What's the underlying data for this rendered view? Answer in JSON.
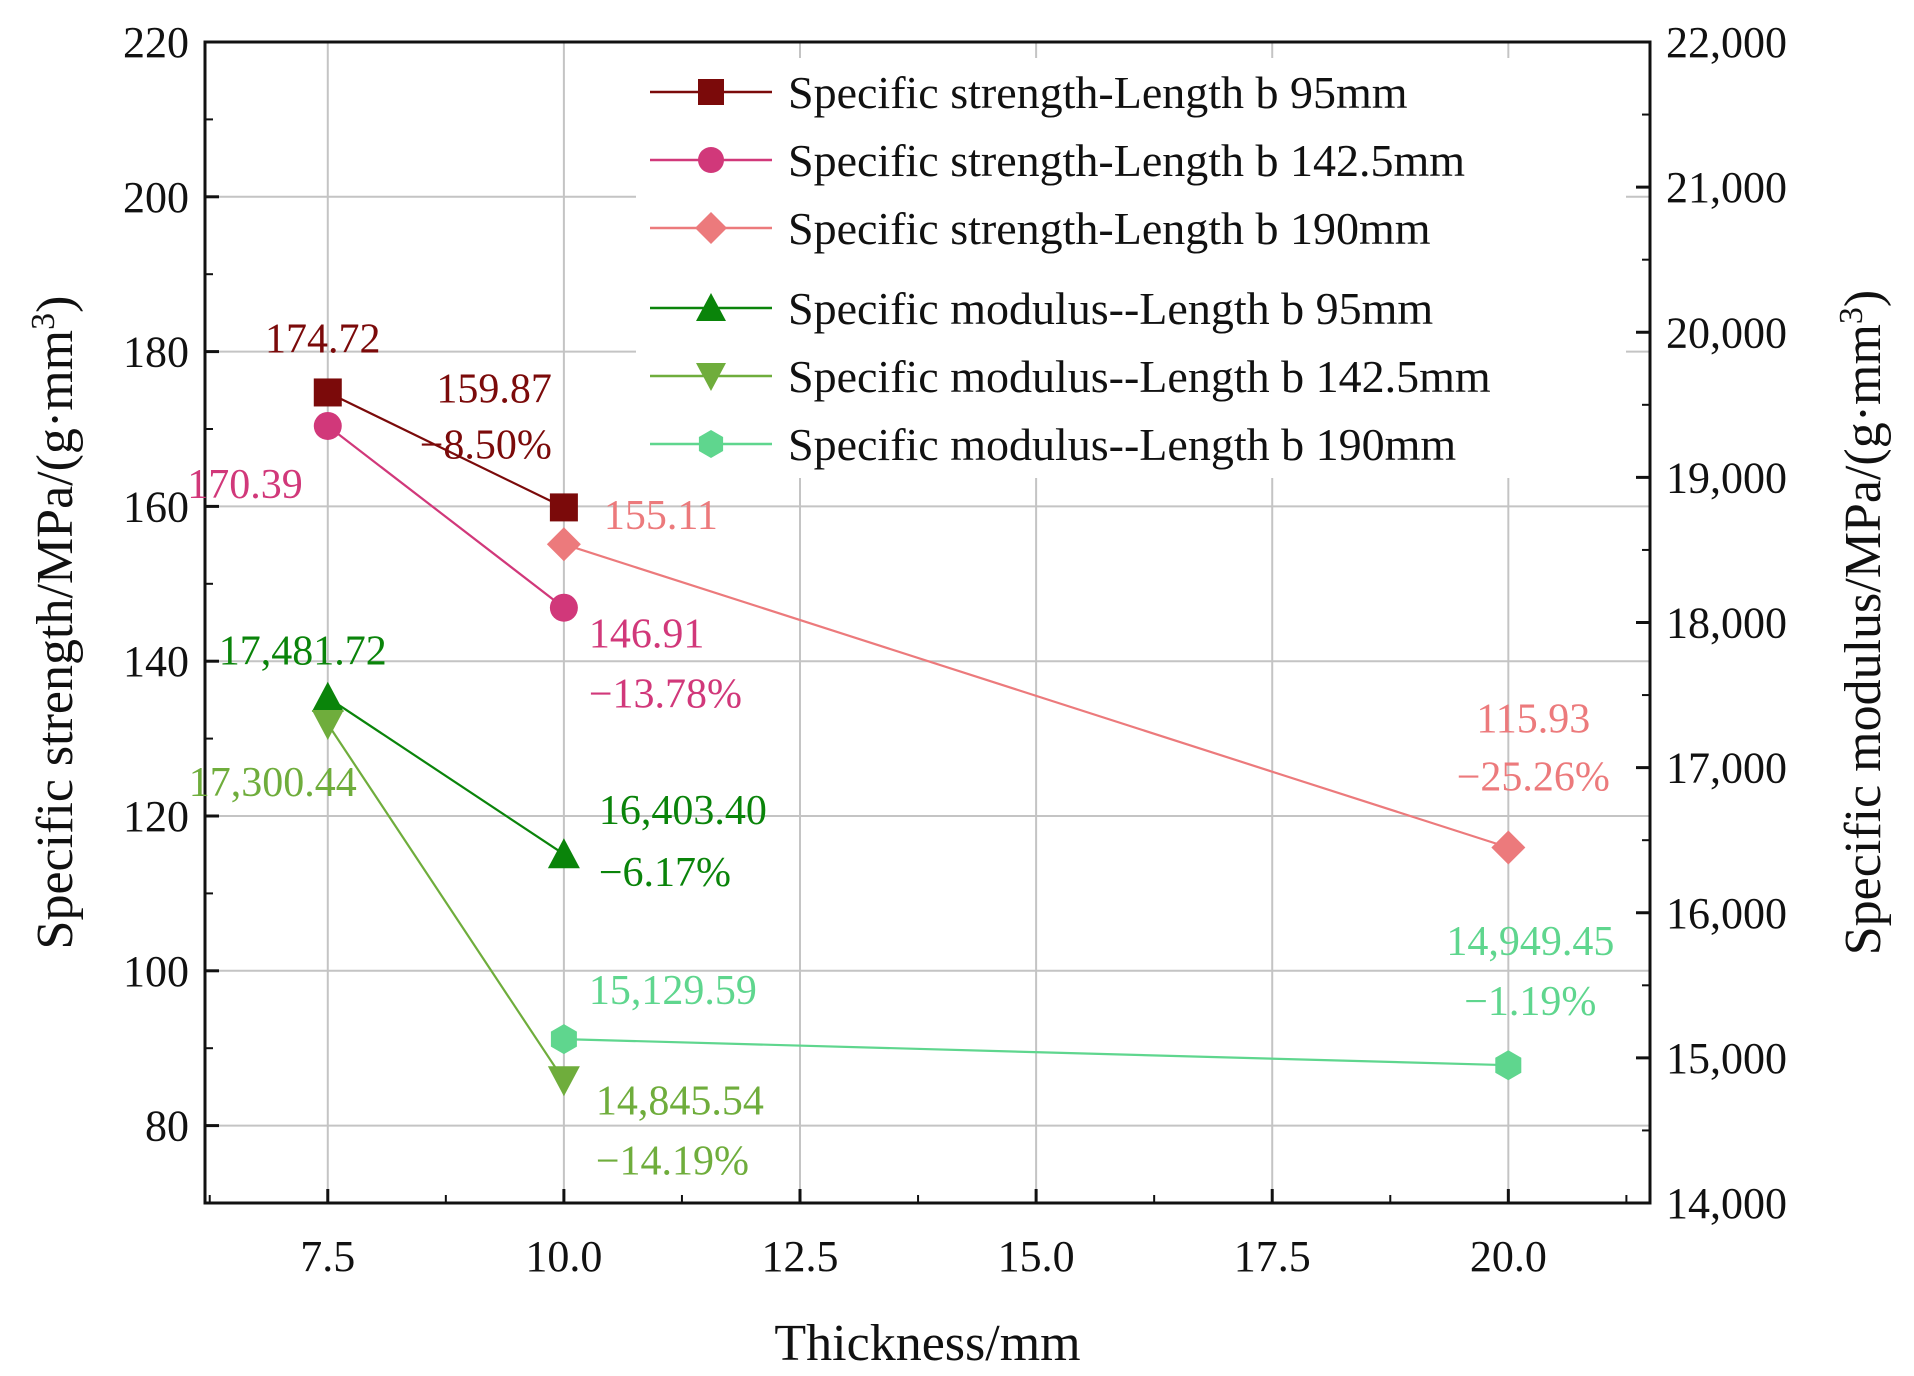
{
  "chart_data": {
    "type": "line",
    "xlabel": "Thickness/mm",
    "ylabel_left": "Specific strength/MPa/(g·mm",
    "ylabel_left_sup": "3",
    "ylabel_left_close": ")",
    "ylabel_right": "Specific modulus/MPa/(g·mm",
    "ylabel_right_sup": "3",
    "ylabel_right_close": ")",
    "xlim": [
      6.2,
      21.5
    ],
    "ylim_left": [
      70,
      220
    ],
    "ylim_right": [
      14000,
      22000
    ],
    "xticks": [
      7.5,
      10.0,
      12.5,
      15.0,
      17.5,
      20.0
    ],
    "xtick_labels": [
      "7.5",
      "10.0",
      "12.5",
      "15.0",
      "17.5",
      "20.0"
    ],
    "yticks_left": [
      80,
      100,
      120,
      140,
      160,
      180,
      200,
      220
    ],
    "yticks_left_labels": [
      "80",
      "100",
      "120",
      "140",
      "160",
      "180",
      "200",
      "220"
    ],
    "yticks_right": [
      14000,
      15000,
      16000,
      17000,
      18000,
      19000,
      20000,
      21000,
      22000
    ],
    "yticks_right_labels": [
      "14,000",
      "15,000",
      "16,000",
      "17,000",
      "18,000",
      "19,000",
      "20,000",
      "21,000",
      "22,000"
    ],
    "grid": true,
    "legend_position": "top-right",
    "series": [
      {
        "name": "Specific strength-Length b 95mm",
        "axis": "left",
        "marker": "square",
        "color": "#7b0a0a",
        "x": [
          7.5,
          10.0
        ],
        "y": [
          174.72,
          159.87
        ],
        "labels": [
          {
            "lines": [
              "174.72"
            ]
          },
          {
            "lines": [
              "159.87",
              "−8.50%"
            ]
          }
        ]
      },
      {
        "name": "Specific strength-Length b 142.5mm",
        "axis": "left",
        "marker": "circle",
        "color": "#d1387a",
        "x": [
          7.5,
          10.0
        ],
        "y": [
          170.39,
          146.91
        ],
        "labels": [
          {
            "lines": [
              "170.39"
            ]
          },
          {
            "lines": [
              "146.91",
              "−13.78%"
            ]
          }
        ]
      },
      {
        "name": "Specific strength-Length b 190mm",
        "axis": "left",
        "marker": "diamond",
        "color": "#ec7a7c",
        "x": [
          10.0,
          20.0
        ],
        "y": [
          155.11,
          115.93
        ],
        "labels": [
          {
            "lines": [
              "155.11"
            ]
          },
          {
            "lines": [
              "115.93",
              "−25.26%"
            ]
          }
        ]
      },
      {
        "name": "Specific modulus--Length b 95mm",
        "axis": "right",
        "marker": "triangle-up",
        "color": "#0a840a",
        "x": [
          7.5,
          10.0
        ],
        "y": [
          17481.72,
          16403.4
        ],
        "labels": [
          {
            "lines": [
              "17,481.72"
            ]
          },
          {
            "lines": [
              "16,403.40",
              "−6.17%"
            ]
          }
        ]
      },
      {
        "name": "Specific modulus--Length b 142.5mm",
        "axis": "right",
        "marker": "triangle-down",
        "color": "#6fad3c",
        "x": [
          7.5,
          10.0
        ],
        "y": [
          17300.44,
          14845.54
        ],
        "labels": [
          {
            "lines": [
              "17,300.44"
            ]
          },
          {
            "lines": [
              "14,845.54",
              "−14.19%"
            ]
          }
        ]
      },
      {
        "name": "Specific modulus--Length b 190mm",
        "axis": "right",
        "marker": "hexagon",
        "color": "#5fd68e",
        "x": [
          10.0,
          20.0
        ],
        "y": [
          15129.59,
          14949.45
        ],
        "labels": [
          {
            "lines": [
              "15,129.59"
            ]
          },
          {
            "lines": [
              "14,949.45",
              "−1.19%"
            ]
          }
        ]
      }
    ]
  }
}
